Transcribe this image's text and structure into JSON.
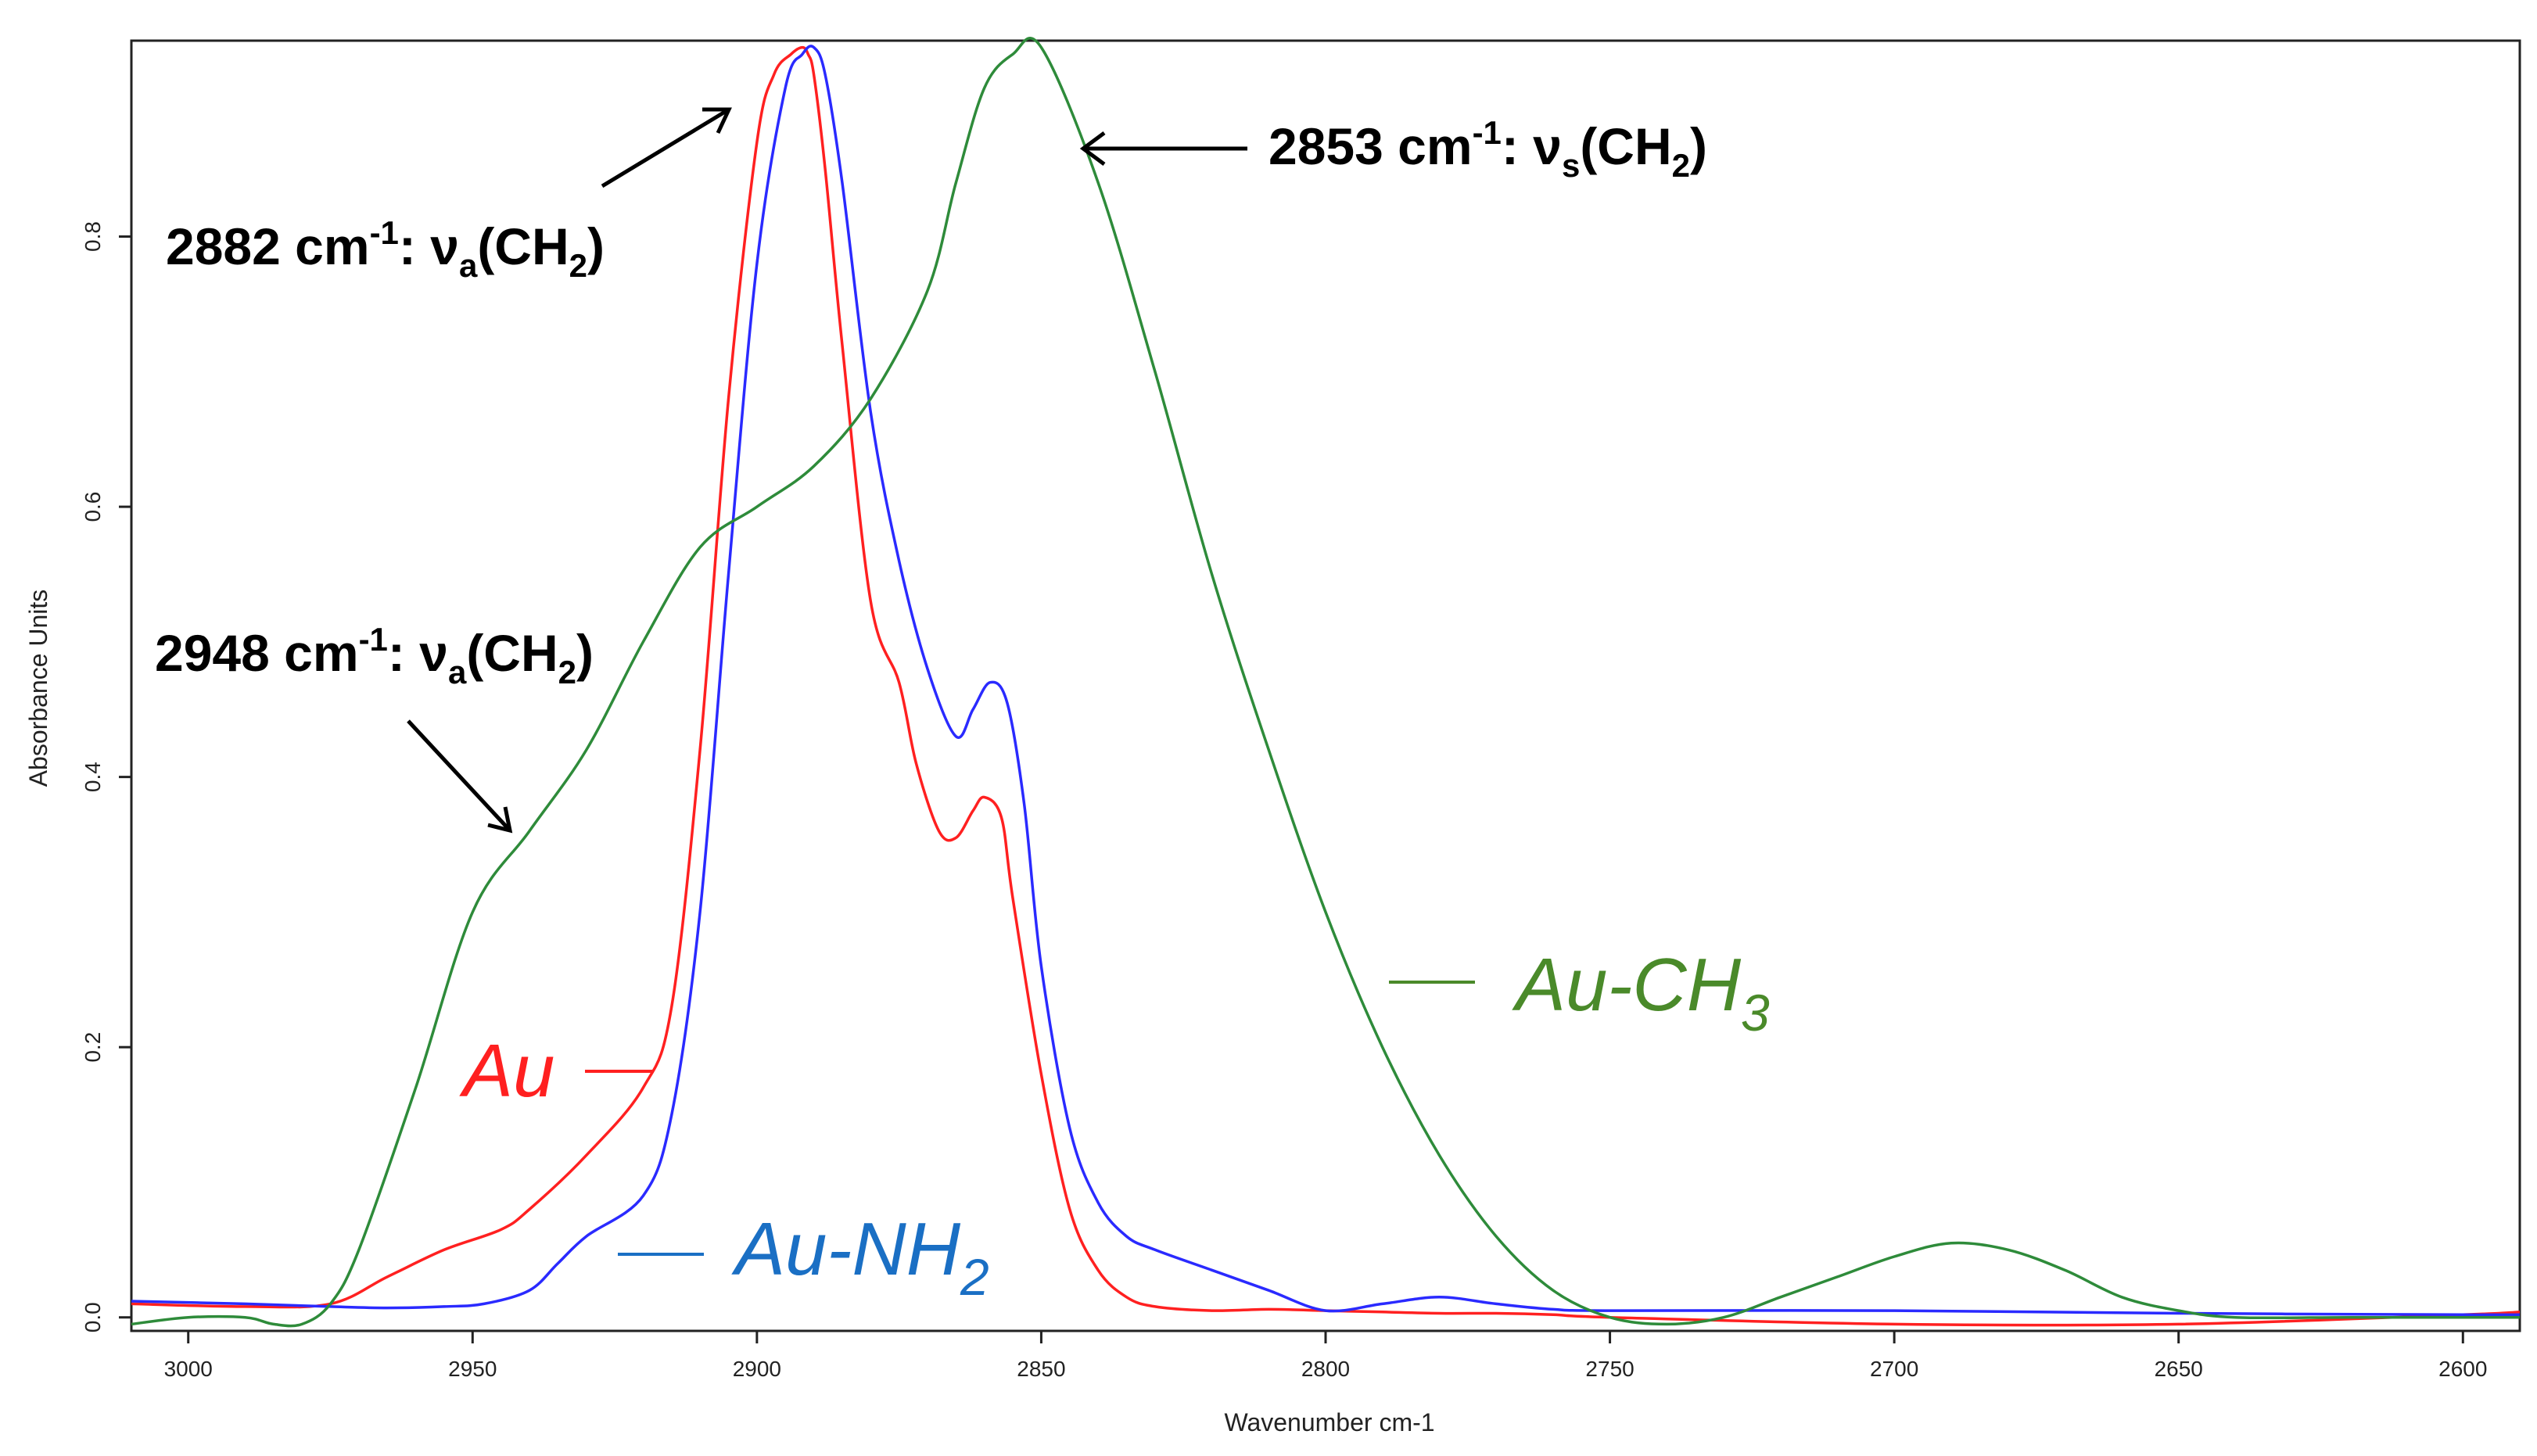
{
  "chart_data": {
    "type": "line",
    "title": "",
    "xlabel": "Wavenumber cm-1",
    "ylabel": "Absorbance Units",
    "xlim": [
      3010,
      2590
    ],
    "ylim": [
      -0.01,
      0.945
    ],
    "xticks": [
      3000,
      2950,
      2900,
      2850,
      2800,
      2750,
      2700,
      2650,
      2600
    ],
    "yticks": [
      0.0,
      0.2,
      0.4,
      0.6,
      0.8
    ],
    "xtick_labels": [
      "3000",
      "2950",
      "2900",
      "2850",
      "2800",
      "2750",
      "2700",
      "2650",
      "2600"
    ],
    "ytick_labels": [
      "0.0",
      "0.2",
      "0.4",
      "0.6",
      "0.8"
    ],
    "grid": false,
    "series": [
      {
        "name": "Au",
        "color": "#ff2020",
        "x": [
          3010,
          2990,
          2975,
          2965,
          2955,
          2945,
          2940,
          2930,
          2920,
          2915,
          2910,
          2905,
          2900,
          2897,
          2894,
          2892,
          2891,
          2890,
          2888,
          2885,
          2880,
          2875,
          2872,
          2868,
          2865,
          2862,
          2860,
          2857,
          2855,
          2850,
          2845,
          2840,
          2835,
          2830,
          2820,
          2810,
          2800,
          2790,
          2780,
          2770,
          2760,
          2750,
          2700,
          2650,
          2600,
          2590
        ],
        "y": [
          0.01,
          0.008,
          0.01,
          0.03,
          0.05,
          0.065,
          0.08,
          0.12,
          0.17,
          0.23,
          0.42,
          0.68,
          0.87,
          0.92,
          0.935,
          0.94,
          0.935,
          0.92,
          0.85,
          0.72,
          0.53,
          0.47,
          0.41,
          0.36,
          0.355,
          0.375,
          0.385,
          0.37,
          0.31,
          0.18,
          0.08,
          0.035,
          0.015,
          0.008,
          0.005,
          0.006,
          0.005,
          0.004,
          0.003,
          0.003,
          0.002,
          0.0,
          -0.005,
          -0.005,
          0.002,
          0.004
        ]
      },
      {
        "name": "Au-NH2",
        "color": "#2a2aff",
        "x": [
          3010,
          2990,
          2975,
          2965,
          2955,
          2948,
          2940,
          2935,
          2930,
          2920,
          2915,
          2910,
          2905,
          2900,
          2895,
          2892,
          2890,
          2888,
          2885,
          2880,
          2875,
          2870,
          2865,
          2862,
          2859,
          2856,
          2853,
          2850,
          2845,
          2840,
          2835,
          2830,
          2820,
          2810,
          2800,
          2790,
          2780,
          2770,
          2760,
          2750,
          2700,
          2650,
          2600,
          2590
        ],
        "y": [
          0.012,
          0.01,
          0.008,
          0.007,
          0.008,
          0.01,
          0.02,
          0.04,
          0.06,
          0.09,
          0.15,
          0.3,
          0.55,
          0.78,
          0.91,
          0.935,
          0.94,
          0.92,
          0.84,
          0.67,
          0.56,
          0.48,
          0.43,
          0.45,
          0.47,
          0.455,
          0.38,
          0.26,
          0.14,
          0.085,
          0.06,
          0.05,
          0.035,
          0.02,
          0.005,
          0.01,
          0.015,
          0.01,
          0.006,
          0.005,
          0.005,
          0.003,
          0.002,
          0.002
        ]
      },
      {
        "name": "Au-CH3",
        "color": "#2e8b3a",
        "x": [
          3010,
          3000,
          2990,
          2985,
          2980,
          2975,
          2970,
          2960,
          2950,
          2940,
          2930,
          2920,
          2910,
          2900,
          2890,
          2880,
          2870,
          2865,
          2860,
          2855,
          2850,
          2840,
          2830,
          2820,
          2810,
          2800,
          2790,
          2780,
          2770,
          2760,
          2750,
          2740,
          2730,
          2720,
          2710,
          2700,
          2690,
          2680,
          2670,
          2660,
          2650,
          2640,
          2620,
          2600,
          2590
        ],
        "y": [
          -0.005,
          0.0,
          0.0,
          -0.005,
          -0.005,
          0.01,
          0.05,
          0.17,
          0.3,
          0.36,
          0.42,
          0.5,
          0.57,
          0.6,
          0.63,
          0.68,
          0.76,
          0.84,
          0.91,
          0.935,
          0.94,
          0.84,
          0.7,
          0.55,
          0.42,
          0.3,
          0.2,
          0.12,
          0.06,
          0.02,
          0.0,
          -0.005,
          0.0,
          0.015,
          0.03,
          0.045,
          0.055,
          0.05,
          0.035,
          0.015,
          0.005,
          0.0,
          0.0,
          0.0,
          0.0
        ]
      }
    ],
    "annotations": [
      {
        "lead": "2882 cm",
        "sup": "-1",
        "mid": ": ν",
        "sub1": "a",
        "paren": "(CH",
        "sub2": "2",
        "close": ")"
      },
      {
        "lead": "2853 cm",
        "sup": "-1",
        "mid": ": ν",
        "sub1": "s",
        "paren": "(CH",
        "sub2": "2",
        "close": ")"
      },
      {
        "lead": "2948 cm",
        "sup": "-1",
        "mid": ": ν",
        "sub1": "a",
        "paren": "(CH",
        "sub2": "2",
        "close": ")"
      }
    ],
    "legend_labels": [
      {
        "base": "Au",
        "sub": ""
      },
      {
        "base": "Au-NH",
        "sub": "2"
      },
      {
        "base": "Au-CH",
        "sub": "3"
      }
    ]
  }
}
